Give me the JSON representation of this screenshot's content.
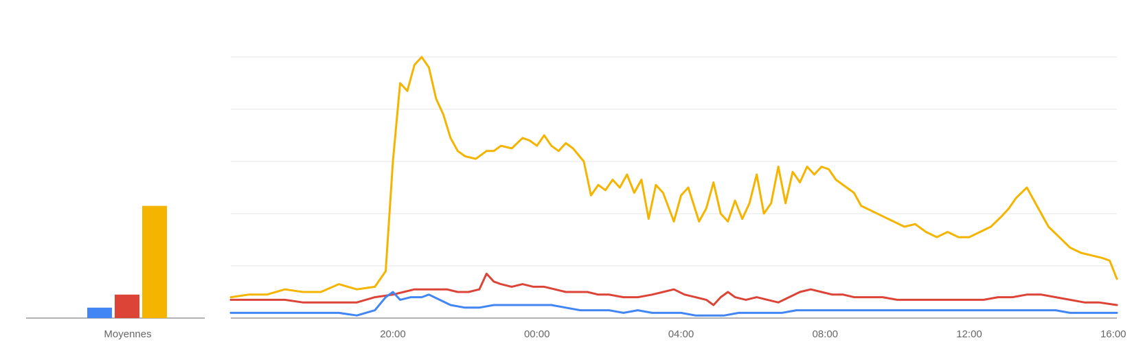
{
  "chart_data": [
    {
      "type": "bar",
      "categories": [
        "Moyennes"
      ],
      "series": [
        {
          "color": "#4285f4",
          "values": [
            4
          ]
        },
        {
          "color": "#db4437",
          "values": [
            9
          ]
        },
        {
          "color": "#f4b400",
          "values": [
            43
          ]
        }
      ],
      "ylim": [
        0,
        100
      ],
      "grid": false
    },
    {
      "type": "line",
      "x_ticks": [
        "20:00",
        "00:00",
        "04:00",
        "08:00",
        "12:00",
        "16:00"
      ],
      "x_tick_hours": [
        20,
        24,
        28,
        32,
        36,
        40
      ],
      "x_range_hours": [
        15.5,
        40.1
      ],
      "ylim": [
        0,
        100
      ],
      "grid": true,
      "series": [
        {
          "color": "#f4b400",
          "points": [
            [
              15.5,
              8
            ],
            [
              16,
              9
            ],
            [
              16.5,
              9
            ],
            [
              17,
              11
            ],
            [
              17.5,
              10
            ],
            [
              18,
              10
            ],
            [
              18.5,
              13
            ],
            [
              19,
              11
            ],
            [
              19.5,
              12
            ],
            [
              19.8,
              18
            ],
            [
              20.0,
              60
            ],
            [
              20.2,
              90
            ],
            [
              20.4,
              87
            ],
            [
              20.6,
              97
            ],
            [
              20.8,
              100
            ],
            [
              21,
              96
            ],
            [
              21.2,
              84
            ],
            [
              21.4,
              78
            ],
            [
              21.6,
              69
            ],
            [
              21.8,
              64
            ],
            [
              22,
              62
            ],
            [
              22.3,
              61
            ],
            [
              22.6,
              64
            ],
            [
              22.8,
              64
            ],
            [
              23,
              66
            ],
            [
              23.3,
              65
            ],
            [
              23.6,
              69
            ],
            [
              23.8,
              68
            ],
            [
              24,
              66
            ],
            [
              24.2,
              70
            ],
            [
              24.4,
              66
            ],
            [
              24.6,
              64
            ],
            [
              24.8,
              67
            ],
            [
              25,
              65
            ],
            [
              25.3,
              60
            ],
            [
              25.5,
              47
            ],
            [
              25.7,
              51
            ],
            [
              25.9,
              49
            ],
            [
              26.1,
              53
            ],
            [
              26.3,
              50
            ],
            [
              26.5,
              55
            ],
            [
              26.7,
              48
            ],
            [
              26.9,
              53
            ],
            [
              27.1,
              38
            ],
            [
              27.3,
              51
            ],
            [
              27.5,
              48
            ],
            [
              27.8,
              37
            ],
            [
              28,
              47
            ],
            [
              28.2,
              50
            ],
            [
              28.5,
              37
            ],
            [
              28.7,
              42
            ],
            [
              28.9,
              52
            ],
            [
              29.1,
              40
            ],
            [
              29.3,
              37
            ],
            [
              29.5,
              45
            ],
            [
              29.7,
              38
            ],
            [
              29.9,
              44
            ],
            [
              30.1,
              55
            ],
            [
              30.3,
              40
            ],
            [
              30.5,
              44
            ],
            [
              30.7,
              58
            ],
            [
              30.9,
              44
            ],
            [
              31.1,
              56
            ],
            [
              31.3,
              52
            ],
            [
              31.5,
              58
            ],
            [
              31.7,
              55
            ],
            [
              31.9,
              58
            ],
            [
              32.1,
              57
            ],
            [
              32.3,
              53
            ],
            [
              32.6,
              50
            ],
            [
              32.8,
              48
            ],
            [
              33,
              43
            ],
            [
              33.3,
              41
            ],
            [
              33.6,
              39
            ],
            [
              33.9,
              37
            ],
            [
              34.2,
              35
            ],
            [
              34.5,
              36
            ],
            [
              34.8,
              33
            ],
            [
              35.1,
              31
            ],
            [
              35.4,
              33
            ],
            [
              35.7,
              31
            ],
            [
              36,
              31
            ],
            [
              36.3,
              33
            ],
            [
              36.6,
              35
            ],
            [
              36.9,
              39
            ],
            [
              37.1,
              42
            ],
            [
              37.3,
              46
            ],
            [
              37.6,
              50
            ],
            [
              37.8,
              45
            ],
            [
              38,
              40
            ],
            [
              38.2,
              35
            ],
            [
              38.5,
              31
            ],
            [
              38.8,
              27
            ],
            [
              39.1,
              25
            ],
            [
              39.4,
              24
            ],
            [
              39.7,
              23
            ],
            [
              39.9,
              22
            ],
            [
              40.1,
              15
            ]
          ]
        },
        {
          "color": "#db4437",
          "points": [
            [
              15.5,
              7
            ],
            [
              16,
              7
            ],
            [
              16.5,
              7
            ],
            [
              17,
              7
            ],
            [
              17.5,
              6
            ],
            [
              18,
              6
            ],
            [
              18.5,
              6
            ],
            [
              19,
              6
            ],
            [
              19.5,
              8
            ],
            [
              20,
              9
            ],
            [
              20.3,
              10
            ],
            [
              20.6,
              11
            ],
            [
              20.9,
              11
            ],
            [
              21.2,
              11
            ],
            [
              21.5,
              11
            ],
            [
              21.8,
              10
            ],
            [
              22.1,
              10
            ],
            [
              22.4,
              11
            ],
            [
              22.6,
              17
            ],
            [
              22.8,
              14
            ],
            [
              23,
              13
            ],
            [
              23.3,
              12
            ],
            [
              23.6,
              13
            ],
            [
              23.9,
              12
            ],
            [
              24.2,
              12
            ],
            [
              24.5,
              11
            ],
            [
              24.8,
              10
            ],
            [
              25.1,
              10
            ],
            [
              25.4,
              10
            ],
            [
              25.7,
              9
            ],
            [
              26,
              9
            ],
            [
              26.4,
              8
            ],
            [
              26.8,
              8
            ],
            [
              27.2,
              9
            ],
            [
              27.5,
              10
            ],
            [
              27.8,
              11
            ],
            [
              28.1,
              9
            ],
            [
              28.4,
              8
            ],
            [
              28.7,
              7
            ],
            [
              28.9,
              5
            ],
            [
              29.1,
              8
            ],
            [
              29.3,
              10
            ],
            [
              29.5,
              8
            ],
            [
              29.8,
              7
            ],
            [
              30.1,
              8
            ],
            [
              30.4,
              7
            ],
            [
              30.7,
              6
            ],
            [
              31.0,
              8
            ],
            [
              31.3,
              10
            ],
            [
              31.6,
              11
            ],
            [
              31.9,
              10
            ],
            [
              32.2,
              9
            ],
            [
              32.5,
              9
            ],
            [
              32.8,
              8
            ],
            [
              33.2,
              8
            ],
            [
              33.6,
              8
            ],
            [
              34,
              7
            ],
            [
              34.4,
              7
            ],
            [
              34.8,
              7
            ],
            [
              35.2,
              7
            ],
            [
              35.6,
              7
            ],
            [
              36,
              7
            ],
            [
              36.4,
              7
            ],
            [
              36.8,
              8
            ],
            [
              37.2,
              8
            ],
            [
              37.6,
              9
            ],
            [
              38,
              9
            ],
            [
              38.4,
              8
            ],
            [
              38.8,
              7
            ],
            [
              39.2,
              6
            ],
            [
              39.6,
              6
            ],
            [
              40.1,
              5
            ]
          ]
        },
        {
          "color": "#4285f4",
          "points": [
            [
              15.5,
              2
            ],
            [
              16,
              2
            ],
            [
              16.5,
              2
            ],
            [
              17,
              2
            ],
            [
              17.5,
              2
            ],
            [
              18,
              2
            ],
            [
              18.5,
              2
            ],
            [
              19,
              1
            ],
            [
              19.5,
              3
            ],
            [
              19.8,
              8
            ],
            [
              20.0,
              10
            ],
            [
              20.2,
              7
            ],
            [
              20.5,
              8
            ],
            [
              20.8,
              8
            ],
            [
              21,
              9
            ],
            [
              21.3,
              7
            ],
            [
              21.6,
              5
            ],
            [
              22,
              4
            ],
            [
              22.4,
              4
            ],
            [
              22.8,
              5
            ],
            [
              23.2,
              5
            ],
            [
              23.6,
              5
            ],
            [
              24,
              5
            ],
            [
              24.4,
              5
            ],
            [
              24.8,
              4
            ],
            [
              25.2,
              3
            ],
            [
              25.6,
              3
            ],
            [
              26,
              3
            ],
            [
              26.4,
              2
            ],
            [
              26.8,
              3
            ],
            [
              27.2,
              2
            ],
            [
              27.6,
              2
            ],
            [
              28,
              2
            ],
            [
              28.4,
              1
            ],
            [
              28.8,
              1
            ],
            [
              29.2,
              1
            ],
            [
              29.6,
              2
            ],
            [
              30,
              2
            ],
            [
              30.4,
              2
            ],
            [
              30.8,
              2
            ],
            [
              31.2,
              3
            ],
            [
              31.6,
              3
            ],
            [
              32,
              3
            ],
            [
              32.4,
              3
            ],
            [
              32.8,
              3
            ],
            [
              33.2,
              3
            ],
            [
              33.6,
              3
            ],
            [
              34,
              3
            ],
            [
              34.4,
              3
            ],
            [
              34.8,
              3
            ],
            [
              35.2,
              3
            ],
            [
              35.6,
              3
            ],
            [
              36,
              3
            ],
            [
              36.4,
              3
            ],
            [
              36.8,
              3
            ],
            [
              37.2,
              3
            ],
            [
              37.6,
              3
            ],
            [
              38,
              3
            ],
            [
              38.4,
              3
            ],
            [
              38.8,
              2
            ],
            [
              39.2,
              2
            ],
            [
              39.6,
              2
            ],
            [
              40.1,
              2
            ]
          ]
        }
      ]
    }
  ]
}
